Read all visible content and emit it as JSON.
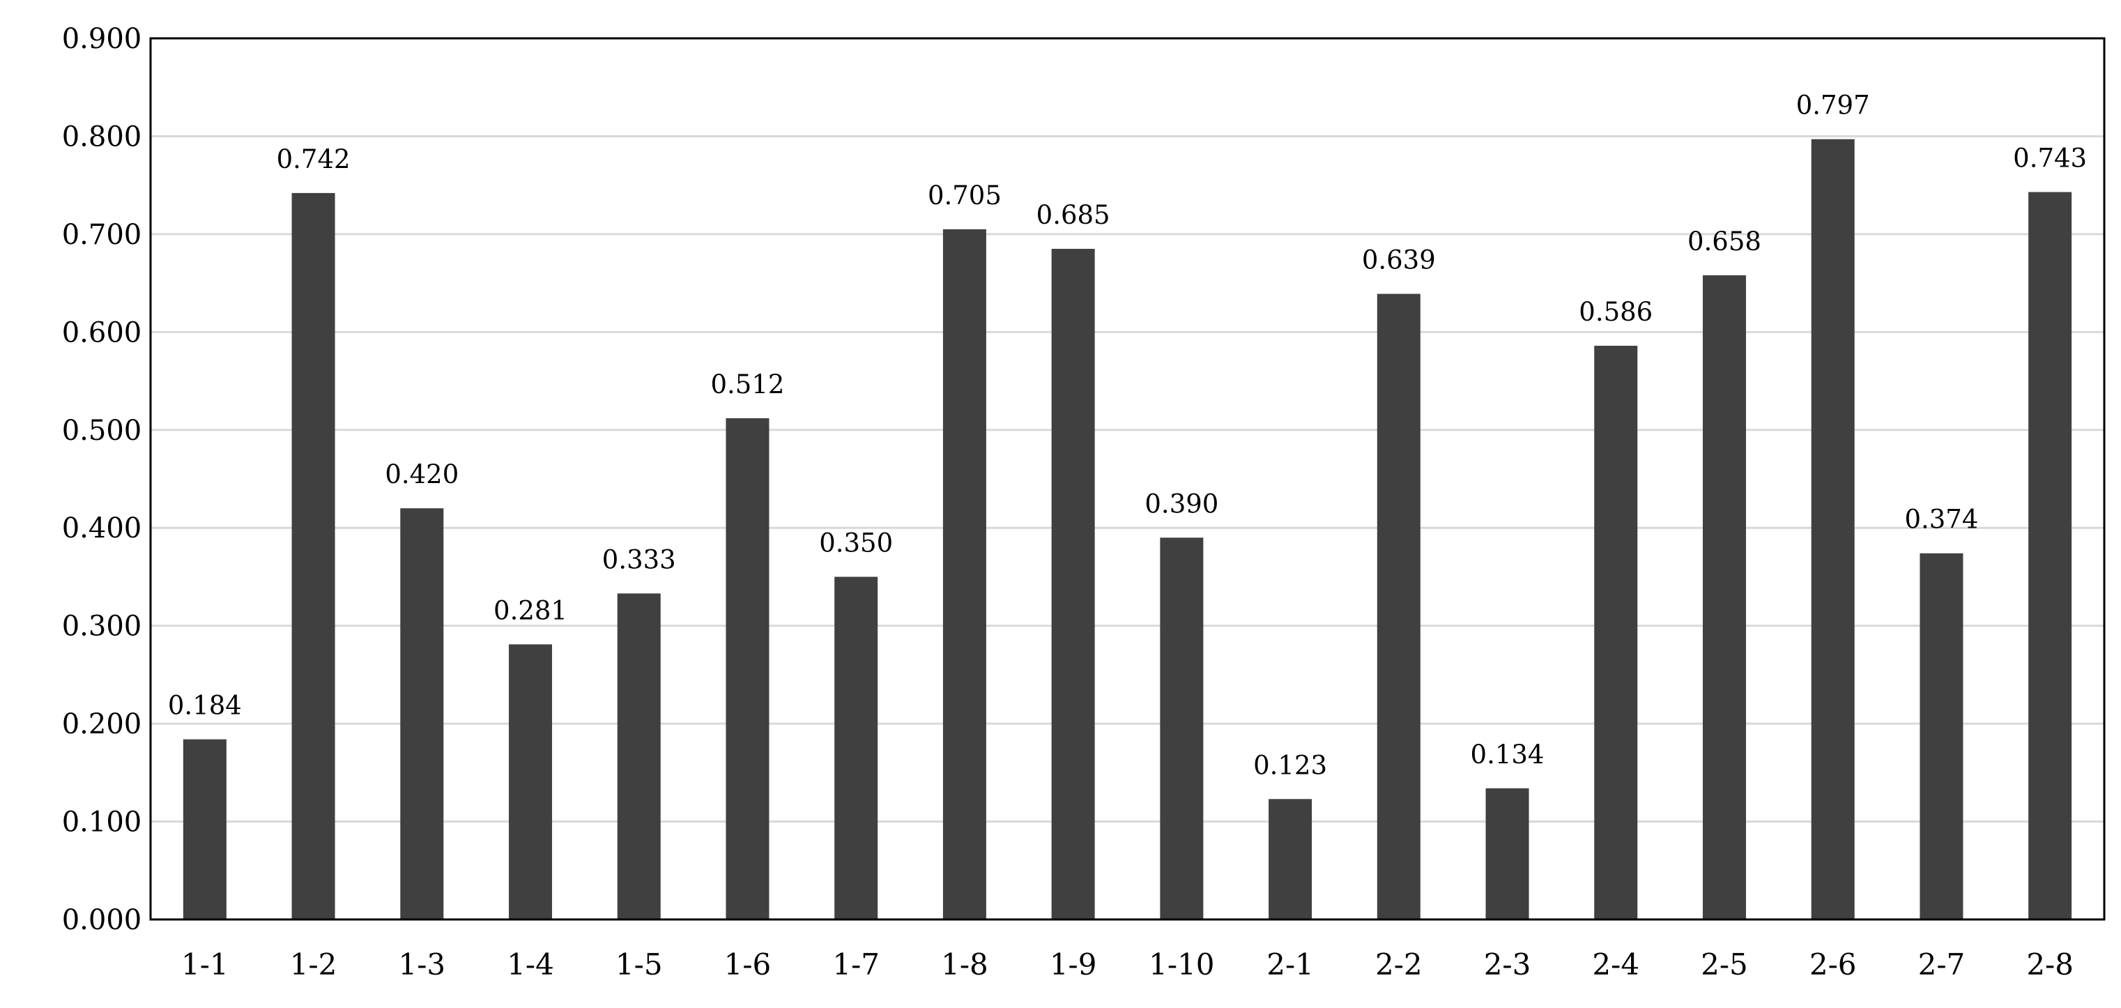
{
  "chart_data": {
    "type": "bar",
    "title": "",
    "xlabel": "",
    "ylabel": "",
    "categories": [
      "1-1",
      "1-2",
      "1-3",
      "1-4",
      "1-5",
      "1-6",
      "1-7",
      "1-8",
      "1-9",
      "1-10",
      "2-1",
      "2-2",
      "2-3",
      "2-4",
      "2-5",
      "2-6",
      "2-7",
      "2-8"
    ],
    "values": [
      0.184,
      0.742,
      0.42,
      0.281,
      0.333,
      0.512,
      0.35,
      0.705,
      0.685,
      0.39,
      0.123,
      0.639,
      0.134,
      0.586,
      0.658,
      0.797,
      0.374,
      0.743
    ],
    "data_labels": [
      "0.184",
      "0.742",
      "0.420",
      "0.281",
      "0.333",
      "0.512",
      "0.350",
      "0.705",
      "0.685",
      "0.390",
      "0.123",
      "0.639",
      "0.134",
      "0.586",
      "0.658",
      "0.797",
      "0.374",
      "0.743"
    ],
    "ylim": [
      0,
      0.9
    ],
    "yticks": [
      "0.000",
      "0.100",
      "0.200",
      "0.300",
      "0.400",
      "0.500",
      "0.600",
      "0.700",
      "0.800",
      "0.900"
    ],
    "grid": true,
    "legend": "none",
    "bar_color": "#404040",
    "grid_color": "#d9d9d9"
  }
}
